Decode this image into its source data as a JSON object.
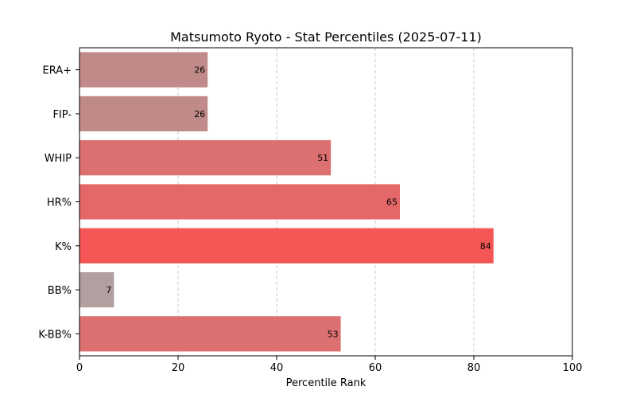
{
  "chart_data": {
    "type": "bar",
    "orientation": "horizontal",
    "title": "Matsumoto Ryoto - Stat Percentiles (2025-07-11)",
    "xlabel": "Percentile Rank",
    "ylabel": "",
    "xlim": [
      0,
      100
    ],
    "xticks": [
      0,
      20,
      40,
      60,
      80,
      100
    ],
    "grid": "vertical dashed",
    "categories": [
      "ERA+",
      "FIP-",
      "WHIP",
      "HR%",
      "K%",
      "BB%",
      "K-BB%"
    ],
    "values": [
      26,
      26,
      51,
      65,
      84,
      7,
      53
    ],
    "colors": [
      "#c08a88",
      "#c08a88",
      "#dc7070",
      "#e46868",
      "#f45656",
      "#b2a0a0",
      "#dc7070"
    ]
  }
}
